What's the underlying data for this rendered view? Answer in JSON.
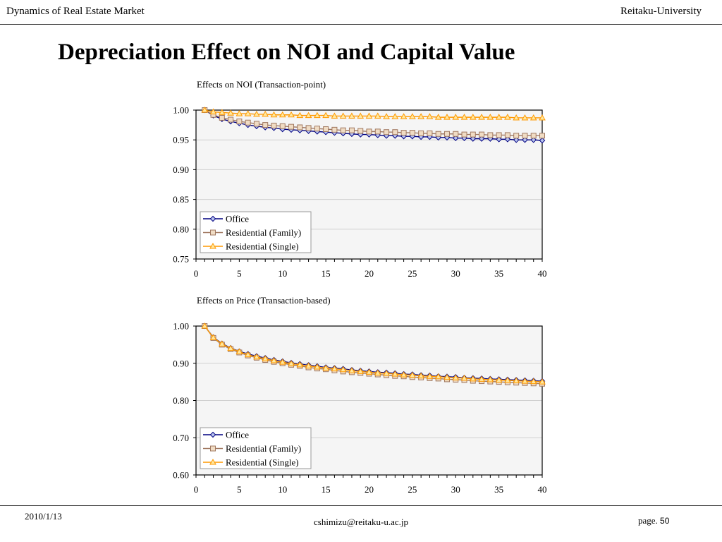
{
  "header": {
    "left": "Dynamics of Real Estate Market",
    "right": "Reitaku-University"
  },
  "slide": {
    "title": "Depreciation Effect on NOI and Capital Value"
  },
  "footer": {
    "date": "2010/1/13",
    "email": "cshimizu@reitaku-u.ac.jp",
    "page_label": "page",
    "page_sep": ".",
    "page_number": "50"
  },
  "colors": {
    "office": "#000080",
    "office_fill": "#b8c4ee",
    "family": "#a07860",
    "family_fill": "#f0dcc4",
    "single": "#ff9900",
    "single_fill": "#ffe8a0",
    "plot_bg": "#f5f5f5",
    "grid": "#d0d0d0"
  },
  "chart_data": [
    {
      "type": "line",
      "title": "Effects on NOI (Transaction-point)",
      "xlabel": "",
      "ylabel": "",
      "xlim": [
        0,
        40
      ],
      "ylim": [
        0.75,
        1.0
      ],
      "xticks": [
        "0",
        "5",
        "10",
        "15",
        "20",
        "25",
        "30",
        "35",
        "40"
      ],
      "yticks": [
        "0.75",
        "0.80",
        "0.85",
        "0.90",
        "0.95",
        "1.00"
      ],
      "grid": true,
      "legend_position": "bottom-left",
      "x": [
        1,
        2,
        3,
        4,
        5,
        6,
        7,
        8,
        9,
        10,
        11,
        12,
        13,
        14,
        15,
        16,
        17,
        18,
        19,
        20,
        21,
        22,
        23,
        24,
        25,
        26,
        27,
        28,
        29,
        30,
        31,
        32,
        33,
        34,
        35,
        36,
        37,
        38,
        39,
        40
      ],
      "series": [
        {
          "name": "Office",
          "marker": "diamond",
          "values": [
            1.0,
            0.991,
            0.985,
            0.981,
            0.978,
            0.975,
            0.973,
            0.971,
            0.97,
            0.968,
            0.967,
            0.966,
            0.965,
            0.964,
            0.963,
            0.962,
            0.961,
            0.96,
            0.959,
            0.959,
            0.958,
            0.957,
            0.957,
            0.956,
            0.956,
            0.955,
            0.955,
            0.954,
            0.954,
            0.953,
            0.953,
            0.952,
            0.952,
            0.952,
            0.951,
            0.951,
            0.95,
            0.95,
            0.95,
            0.949
          ]
        },
        {
          "name": "Residential (Family)",
          "marker": "square",
          "values": [
            1.0,
            0.992,
            0.987,
            0.984,
            0.981,
            0.979,
            0.977,
            0.975,
            0.974,
            0.973,
            0.972,
            0.971,
            0.97,
            0.969,
            0.968,
            0.967,
            0.966,
            0.966,
            0.965,
            0.964,
            0.964,
            0.963,
            0.963,
            0.962,
            0.962,
            0.961,
            0.961,
            0.96,
            0.96,
            0.96,
            0.959,
            0.959,
            0.959,
            0.958,
            0.958,
            0.958,
            0.957,
            0.957,
            0.957,
            0.957
          ]
        },
        {
          "name": "Residential (Single)",
          "marker": "triangle",
          "values": [
            1.0,
            0.997,
            0.996,
            0.995,
            0.994,
            0.994,
            0.993,
            0.993,
            0.992,
            0.992,
            0.992,
            0.991,
            0.991,
            0.991,
            0.991,
            0.99,
            0.99,
            0.99,
            0.99,
            0.99,
            0.99,
            0.989,
            0.989,
            0.989,
            0.989,
            0.989,
            0.989,
            0.988,
            0.988,
            0.988,
            0.988,
            0.988,
            0.988,
            0.988,
            0.988,
            0.988,
            0.987,
            0.987,
            0.987,
            0.987
          ]
        }
      ]
    },
    {
      "type": "line",
      "title": "Effects on Price (Transaction-based)",
      "xlabel": "",
      "ylabel": "",
      "xlim": [
        0,
        40
      ],
      "ylim": [
        0.6,
        1.0
      ],
      "xticks": [
        "0",
        "5",
        "10",
        "15",
        "20",
        "25",
        "30",
        "35",
        "40"
      ],
      "yticks": [
        "0.60",
        "0.70",
        "0.80",
        "0.90",
        "1.00"
      ],
      "grid": true,
      "legend_position": "bottom-left",
      "x": [
        1,
        2,
        3,
        4,
        5,
        6,
        7,
        8,
        9,
        10,
        11,
        12,
        13,
        14,
        15,
        16,
        17,
        18,
        19,
        20,
        21,
        22,
        23,
        24,
        25,
        26,
        27,
        28,
        29,
        30,
        31,
        32,
        33,
        34,
        35,
        36,
        37,
        38,
        39,
        40
      ],
      "series": [
        {
          "name": "Office",
          "marker": "diamond",
          "values": [
            1.0,
            0.97,
            0.953,
            0.941,
            0.932,
            0.925,
            0.919,
            0.914,
            0.909,
            0.905,
            0.901,
            0.898,
            0.895,
            0.892,
            0.889,
            0.887,
            0.885,
            0.882,
            0.88,
            0.878,
            0.876,
            0.875,
            0.873,
            0.871,
            0.87,
            0.868,
            0.867,
            0.865,
            0.864,
            0.863,
            0.861,
            0.86,
            0.859,
            0.858,
            0.857,
            0.856,
            0.855,
            0.854,
            0.853,
            0.852
          ]
        },
        {
          "name": "Residential (Family)",
          "marker": "square",
          "values": [
            1.0,
            0.968,
            0.95,
            0.938,
            0.929,
            0.921,
            0.915,
            0.909,
            0.904,
            0.9,
            0.896,
            0.893,
            0.889,
            0.886,
            0.884,
            0.881,
            0.878,
            0.876,
            0.874,
            0.872,
            0.87,
            0.868,
            0.866,
            0.865,
            0.863,
            0.862,
            0.86,
            0.859,
            0.857,
            0.856,
            0.855,
            0.853,
            0.852,
            0.851,
            0.85,
            0.849,
            0.848,
            0.847,
            0.846,
            0.845
          ]
        },
        {
          "name": "Residential (Single)",
          "marker": "triangle",
          "values": [
            1.0,
            0.969,
            0.952,
            0.94,
            0.931,
            0.923,
            0.917,
            0.912,
            0.907,
            0.903,
            0.899,
            0.896,
            0.893,
            0.89,
            0.887,
            0.885,
            0.883,
            0.88,
            0.878,
            0.876,
            0.874,
            0.873,
            0.871,
            0.869,
            0.868,
            0.866,
            0.865,
            0.864,
            0.862,
            0.861,
            0.86,
            0.858,
            0.857,
            0.856,
            0.855,
            0.854,
            0.853,
            0.852,
            0.851,
            0.85
          ]
        }
      ]
    }
  ]
}
